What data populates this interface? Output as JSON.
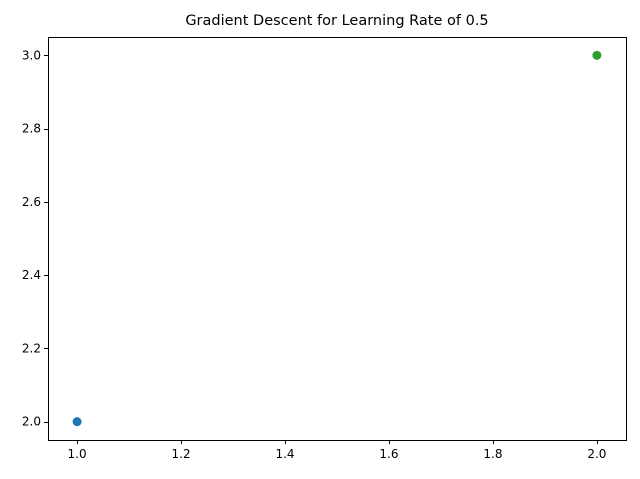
{
  "chart_data": {
    "type": "scatter",
    "title": "Gradient Descent for Learning Rate of 0.5",
    "xlabel": "",
    "ylabel": "",
    "xlim": [
      0.944,
      2.056
    ],
    "ylim": [
      1.95,
      3.05
    ],
    "xticks": [
      1.0,
      1.2,
      1.4,
      1.6,
      1.8,
      2.0
    ],
    "xtick_labels": [
      "1.0",
      "1.2",
      "1.4",
      "1.6",
      "1.8",
      "2.0"
    ],
    "yticks": [
      2.0,
      2.2,
      2.4,
      2.6,
      2.8,
      3.0
    ],
    "ytick_labels": [
      "2.0",
      "2.2",
      "2.4",
      "2.6",
      "2.8",
      "3.0"
    ],
    "grid": false,
    "series": [
      {
        "x": [
          1.0
        ],
        "y": [
          2.0
        ],
        "color": "#1f77b4"
      },
      {
        "x": [
          2.0
        ],
        "y": [
          3.0
        ],
        "color": "#2ca02c"
      }
    ]
  }
}
